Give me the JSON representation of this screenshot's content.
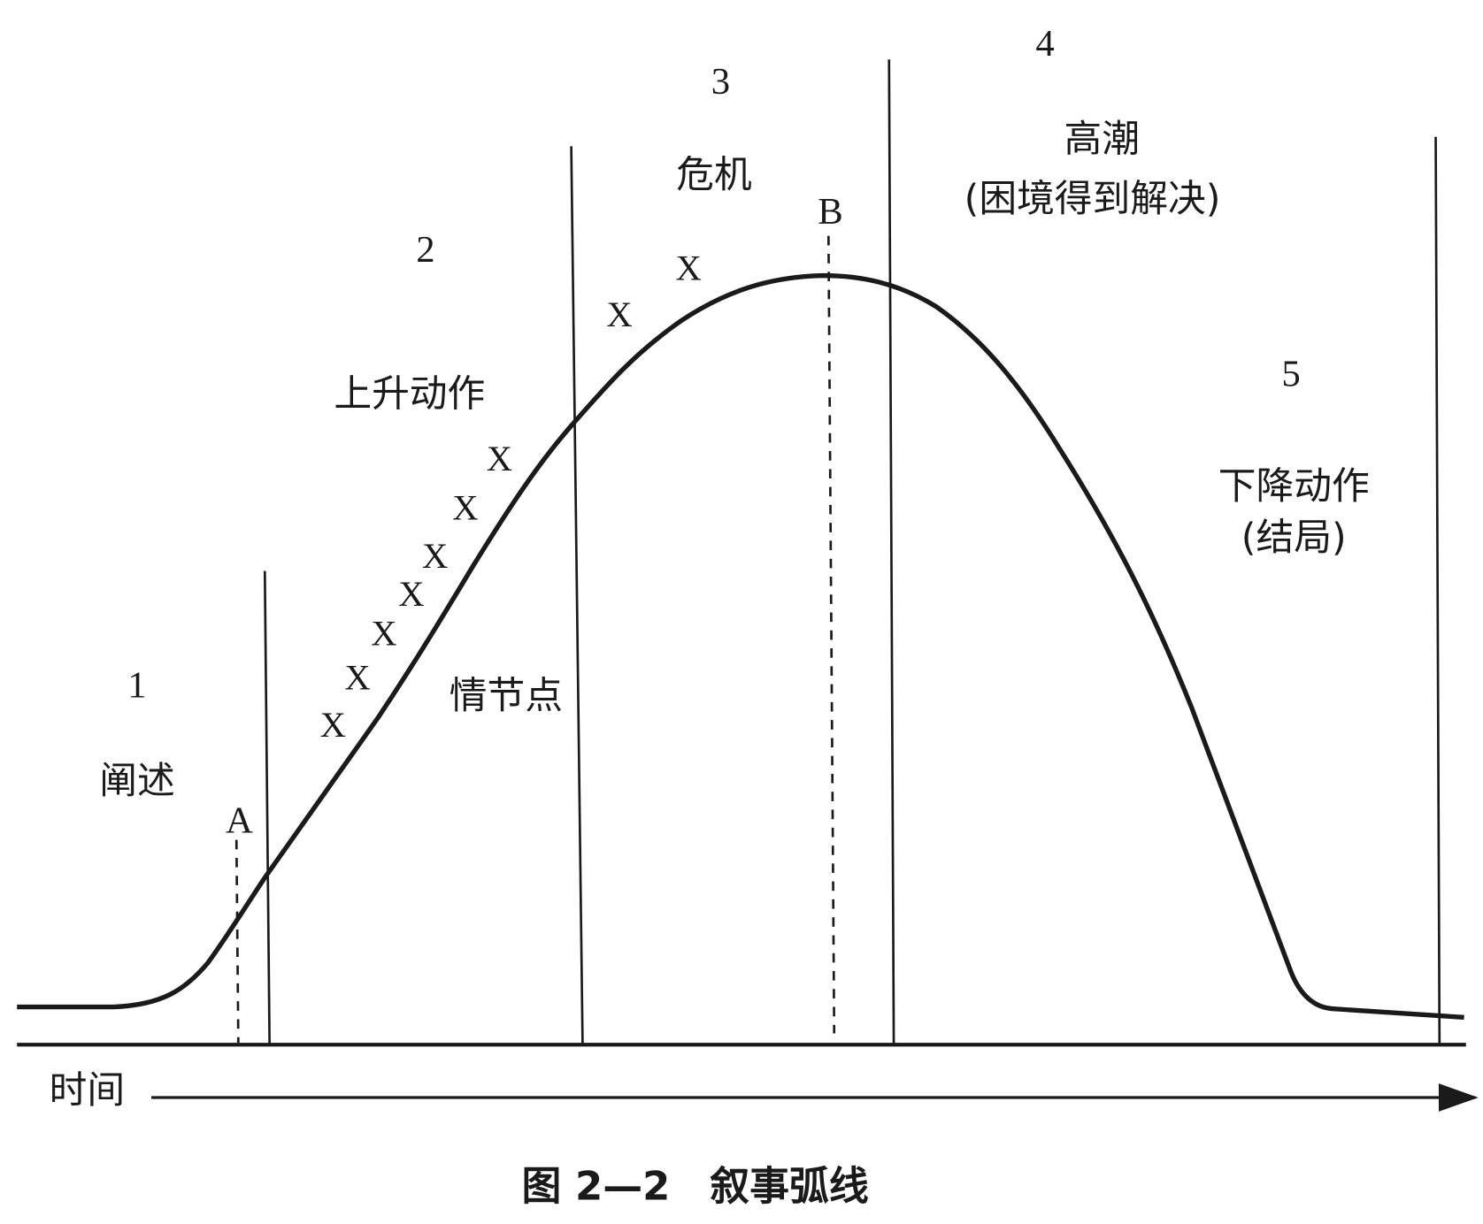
{
  "sections": [
    {
      "number": "1",
      "label": "阐述"
    },
    {
      "number": "2",
      "label": "上升动作"
    },
    {
      "number": "3",
      "label": "危机"
    },
    {
      "number": "4",
      "label": "高潮",
      "subtitle": "(困境得到解决)"
    },
    {
      "number": "5",
      "label": "下降动作",
      "subtitle": "(结局)"
    }
  ],
  "plot_point_label": "情节点",
  "markers": [
    "A",
    "B"
  ],
  "plot_points": [
    "X",
    "X",
    "X",
    "X",
    "X",
    "X",
    "X",
    "X",
    "X"
  ],
  "axis_label": "时间",
  "caption": "图 2—2　叙事弧线"
}
